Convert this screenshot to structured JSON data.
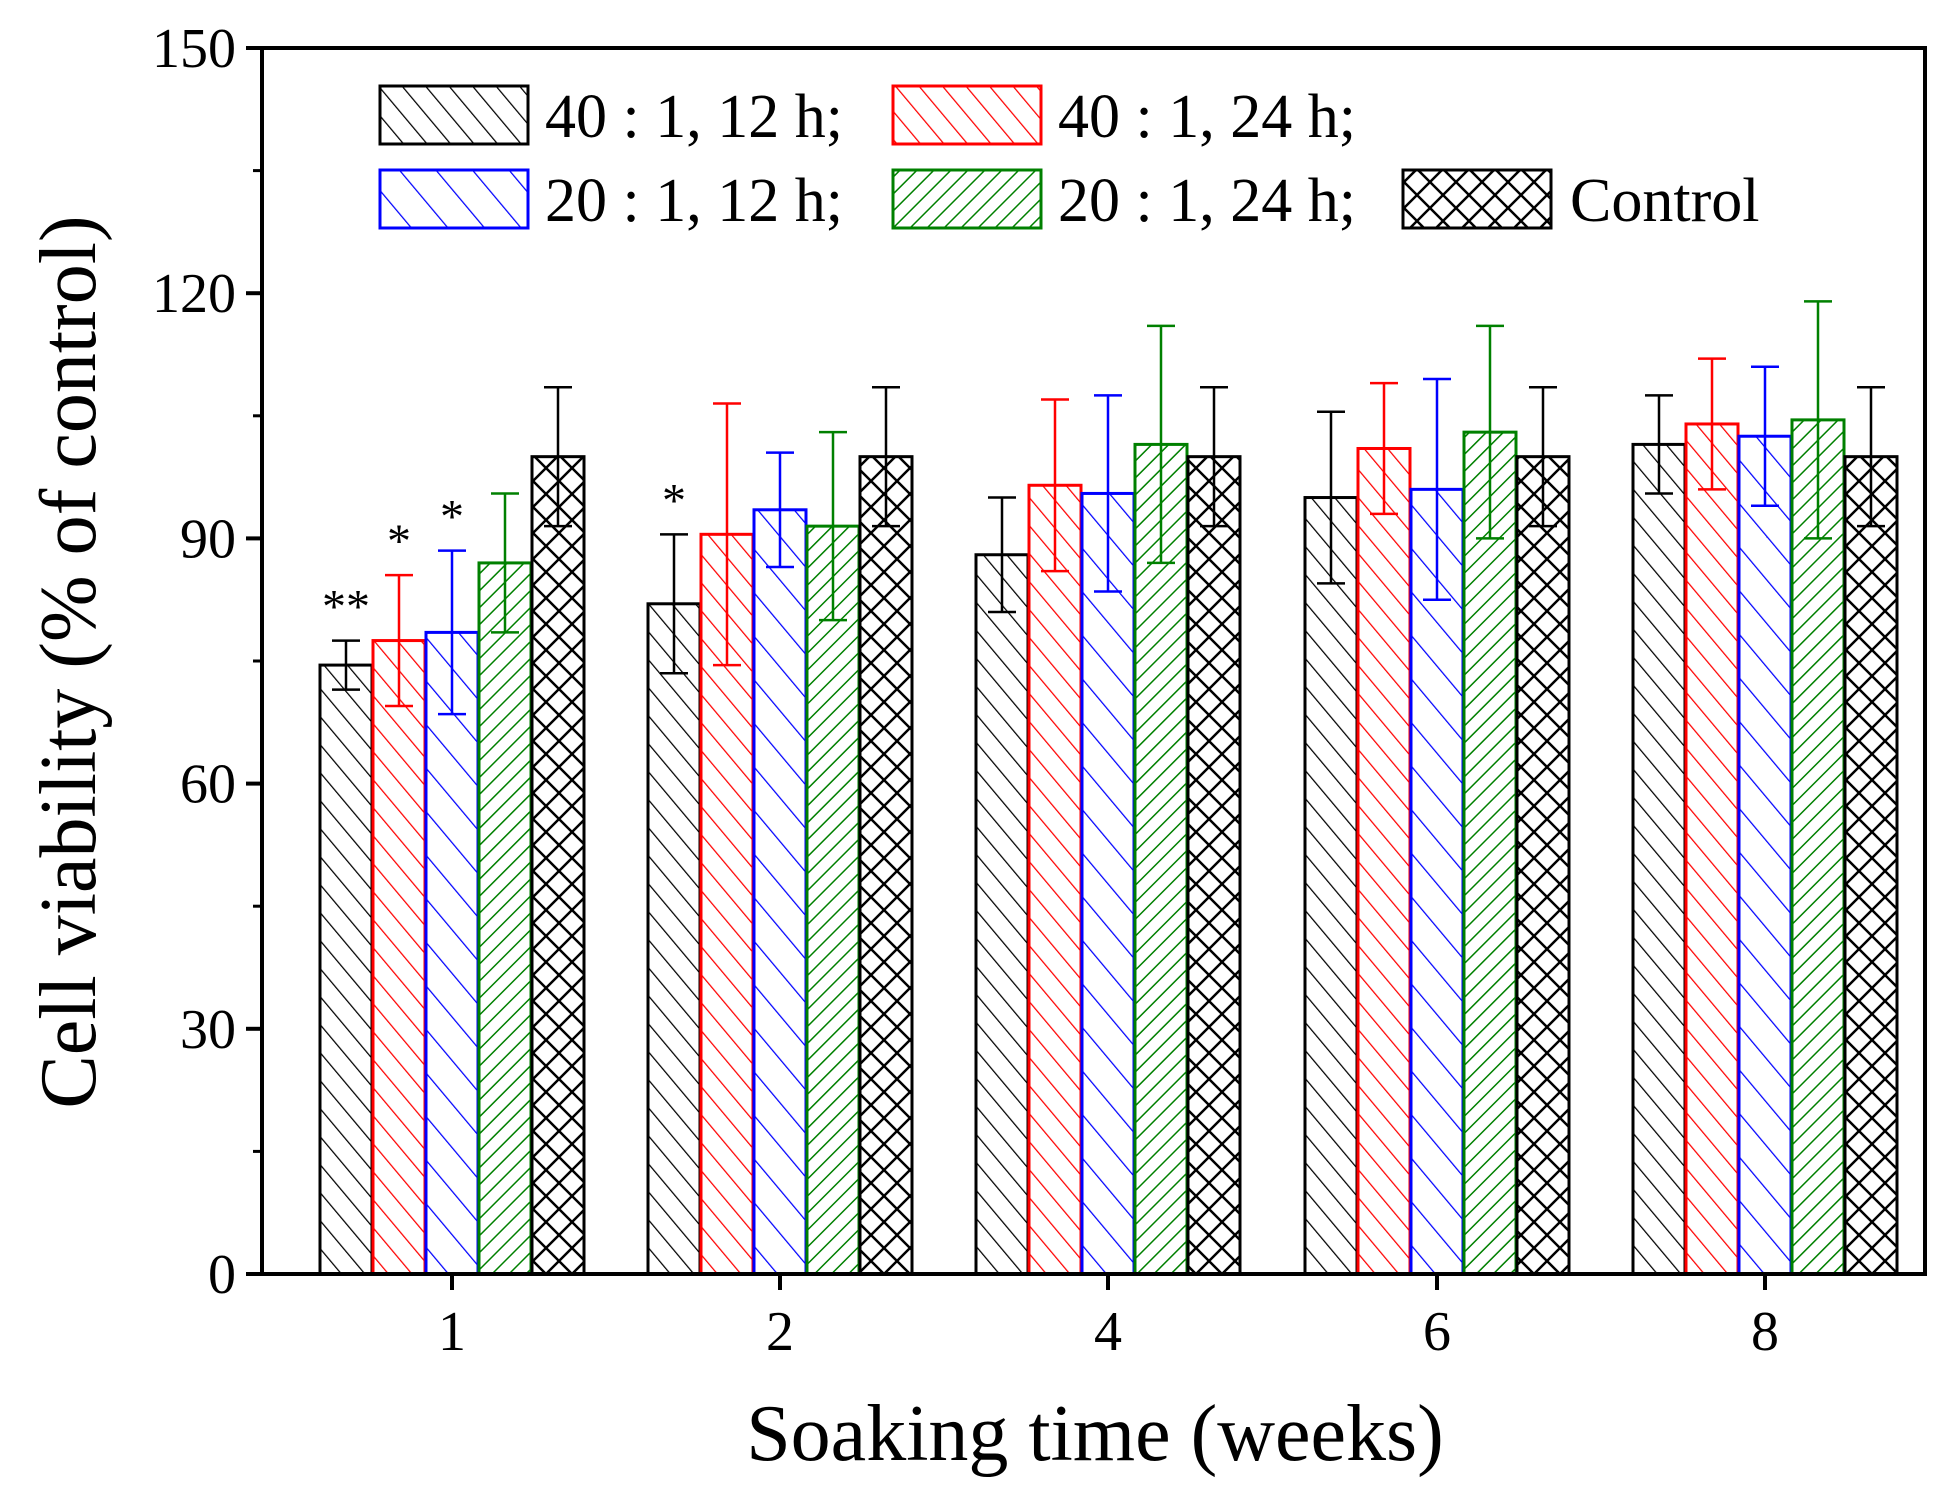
{
  "chart_data": {
    "type": "bar",
    "title": "",
    "xlabel": "Soaking time (weeks)",
    "ylabel": "Cell viability (% of control)",
    "ylim": [
      0,
      150
    ],
    "yticks": [
      "0",
      "30",
      "60",
      "90",
      "120",
      "150"
    ],
    "categories": [
      "1",
      "2",
      "4",
      "6",
      "8"
    ],
    "legend_position": "top-left",
    "series": [
      {
        "name": "40 : 1, 12 h;",
        "color": "#000000",
        "pattern": "diag-steep",
        "values": [
          74.5,
          82,
          88,
          95,
          101.5
        ],
        "errors": [
          3,
          8.5,
          7,
          10.5,
          6
        ],
        "significance": [
          "**",
          "*",
          "",
          "",
          ""
        ]
      },
      {
        "name": "40 : 1, 24 h;",
        "color": "#ff0000",
        "pattern": "diag-steep",
        "values": [
          77.5,
          90.5,
          96.5,
          101,
          104
        ],
        "errors": [
          8,
          16,
          10.5,
          8,
          8
        ],
        "significance": [
          "*",
          "",
          "",
          "",
          ""
        ]
      },
      {
        "name": "20 : 1, 12 h;",
        "color": "#0000ff",
        "pattern": "diag-wide",
        "values": [
          78.5,
          93.5,
          95.5,
          96,
          102.5
        ],
        "errors": [
          10,
          7,
          12,
          13.5,
          8.5
        ],
        "significance": [
          "*",
          "",
          "",
          "",
          ""
        ]
      },
      {
        "name": "20 : 1, 24 h;",
        "color": "#008000",
        "pattern": "diag-back",
        "values": [
          87,
          91.5,
          101.5,
          103,
          104.5
        ],
        "errors": [
          8.5,
          11.5,
          14.5,
          13,
          14.5
        ],
        "significance": [
          "",
          "",
          "",
          "",
          ""
        ]
      },
      {
        "name": "Control",
        "color": "#000000",
        "pattern": "cross",
        "values": [
          100,
          100,
          100,
          100,
          100
        ],
        "errors": [
          8.5,
          8.5,
          8.5,
          8.5,
          8.5
        ],
        "significance": [
          "",
          "",
          "",
          "",
          ""
        ]
      }
    ]
  }
}
